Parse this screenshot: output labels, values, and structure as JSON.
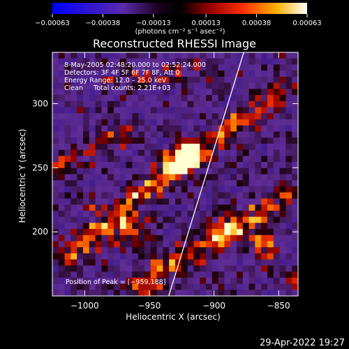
{
  "chart_data": {
    "type": "heatmap",
    "title": "Reconstructed RHESSI Image",
    "xlabel": "Heliocentric X (arcsec)",
    "ylabel": "Heliocentric Y (arcsec)",
    "xlim": [
      -1025,
      -835
    ],
    "ylim": [
      150,
      340
    ],
    "x_ticks": [
      -1000,
      -950,
      -900,
      -850
    ],
    "x_tick_labels": [
      "−1000",
      "−950",
      "−900",
      "−850"
    ],
    "y_ticks": [
      200,
      250,
      300
    ],
    "y_tick_labels": [
      "200",
      "250",
      "300"
    ],
    "colorbar": {
      "ticks": [
        -0.00063,
        -0.00038,
        -0.00013,
        0.00013,
        0.00038,
        0.00063
      ],
      "tick_labels": [
        "−0.00063",
        "−0.00038",
        "−0.00013",
        "0.00013",
        "0.00038",
        "0.00063"
      ],
      "units_label": "(photons cm⁻² s⁻¹ asec⁻²)",
      "range": [
        -0.00063,
        0.00063
      ]
    },
    "annotations": [
      "8-May-2005 02:48:20.000 to 02:52:24.000",
      "Detectors: 3F 4F 5F 6F 7F 8F, Att 0",
      "Energy Range: 12.0 – 25.0 keV",
      "Clean     Total counts: 2.21E+03"
    ],
    "peak_label": "Position of Peak = [−959,188]",
    "limb_line": {
      "x": [
        -935,
        -877
      ],
      "y": [
        150,
        340
      ]
    },
    "grid_cols": 40,
    "grid_rows": 40,
    "grid": "procedural-noise"
  },
  "footer": {
    "timestamp": "29-Apr-2022 19:27"
  }
}
